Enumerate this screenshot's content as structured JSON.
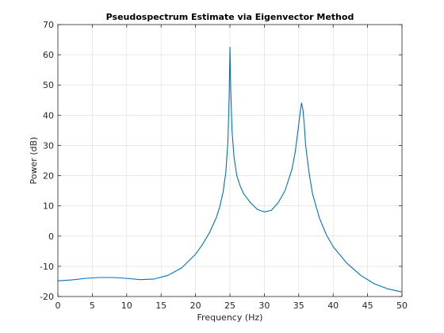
{
  "chart_data": {
    "type": "line",
    "title": "Pseudospectrum Estimate via Eigenvector Method",
    "xlabel": "Frequency (Hz)",
    "ylabel": "Power (dB)",
    "xlim": [
      0,
      50
    ],
    "ylim": [
      -20,
      70
    ],
    "xticks": [
      0,
      5,
      10,
      15,
      20,
      25,
      30,
      35,
      40,
      45,
      50
    ],
    "yticks": [
      -20,
      -10,
      0,
      10,
      20,
      30,
      40,
      50,
      60,
      70
    ],
    "grid": true,
    "line_color": "#0072BD",
    "series": [
      {
        "x": [
          0,
          2,
          4,
          6,
          8,
          10,
          12,
          14,
          16,
          18,
          20,
          21,
          22,
          23,
          23.5,
          24,
          24.4,
          24.7,
          24.9,
          25.0,
          25.1,
          25.3,
          25.6,
          26.0,
          26.5,
          27,
          28,
          29,
          30,
          31,
          32,
          33,
          34,
          34.5,
          35,
          35.2,
          35.4,
          35.6,
          35.8,
          36,
          36.5,
          37,
          38,
          39,
          40,
          42,
          44,
          46,
          48,
          50
        ],
        "y": [
          -14.8,
          -14.5,
          -14.0,
          -13.7,
          -13.7,
          -14.0,
          -14.4,
          -14.2,
          -13.0,
          -10.5,
          -6.0,
          -2.8,
          1.0,
          6.0,
          9.5,
          14.5,
          21.0,
          31.0,
          47.0,
          62.5,
          50.0,
          35.0,
          26.0,
          20.0,
          16.5,
          14.0,
          11.0,
          8.8,
          8.0,
          8.5,
          11.0,
          15.0,
          22.0,
          28.0,
          37.0,
          41.0,
          44.0,
          42.0,
          37.0,
          30.0,
          21.0,
          14.0,
          6.0,
          0.5,
          -3.5,
          -9.0,
          -13.0,
          -15.8,
          -17.5,
          -18.5
        ]
      }
    ]
  }
}
